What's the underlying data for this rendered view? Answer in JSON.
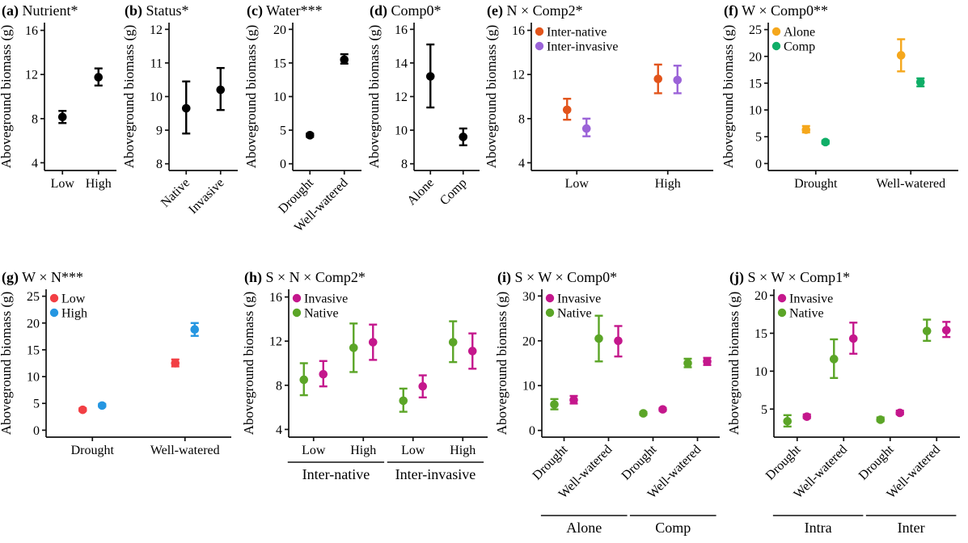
{
  "figure": {
    "background": "#ffffff",
    "shared_ylabel": "Aboveground biomass (g)"
  },
  "chart_data": [
    {
      "id": "a",
      "panel_label": "(a)",
      "title": "Nutrient*",
      "type": "pointrange",
      "ylabel": "Aboveground biomass (g)",
      "ylim": [
        3.3,
        16.7
      ],
      "yticks": [
        4,
        8,
        12,
        16
      ],
      "categories": [
        "Low",
        "High"
      ],
      "xtick_rotate": 0,
      "groups": [],
      "legend": false,
      "series": [
        {
          "name": "",
          "color": "#000000",
          "dodge": 0,
          "points": [
            {
              "y": 8.15,
              "lo": 7.6,
              "hi": 8.7
            },
            {
              "y": 11.75,
              "lo": 11.0,
              "hi": 12.55
            }
          ]
        }
      ]
    },
    {
      "id": "b",
      "panel_label": "(b)",
      "title": "Status*",
      "type": "pointrange",
      "ylabel": "Aboveground biomass (g)",
      "ylim": [
        7.8,
        12.2
      ],
      "yticks": [
        8,
        9,
        10,
        11,
        12
      ],
      "categories": [
        "Native",
        "Invasive"
      ],
      "xtick_rotate": 45,
      "groups": [],
      "legend": false,
      "series": [
        {
          "name": "",
          "color": "#000000",
          "dodge": 0,
          "points": [
            {
              "y": 9.65,
              "lo": 8.9,
              "hi": 10.45
            },
            {
              "y": 10.2,
              "lo": 9.6,
              "hi": 10.85
            }
          ]
        }
      ]
    },
    {
      "id": "c",
      "panel_label": "(c)",
      "title": "Water***",
      "type": "pointrange",
      "ylabel": "Aboveground biomass (g)",
      "ylim": [
        -1,
        21
      ],
      "yticks": [
        0,
        5,
        10,
        15,
        20
      ],
      "categories": [
        "Drought",
        "Well-watered"
      ],
      "xtick_rotate": 45,
      "groups": [],
      "legend": false,
      "series": [
        {
          "name": "",
          "color": "#000000",
          "dodge": 0,
          "points": [
            {
              "y": 4.25,
              "lo": 4.0,
              "hi": 4.5
            },
            {
              "y": 15.5,
              "lo": 14.9,
              "hi": 16.3
            }
          ]
        }
      ]
    },
    {
      "id": "d",
      "panel_label": "(d)",
      "title": "Comp0*",
      "type": "pointrange",
      "ylabel": "Aboveground biomass (g)",
      "ylim": [
        7.6,
        16.4
      ],
      "yticks": [
        8,
        10,
        12,
        14,
        16
      ],
      "categories": [
        "Alone",
        "Comp"
      ],
      "xtick_rotate": 45,
      "groups": [],
      "legend": false,
      "series": [
        {
          "name": "",
          "color": "#000000",
          "dodge": 0,
          "points": [
            {
              "y": 13.2,
              "lo": 11.35,
              "hi": 15.1
            },
            {
              "y": 9.6,
              "lo": 9.1,
              "hi": 10.1
            }
          ]
        }
      ]
    },
    {
      "id": "e",
      "panel_label": "(e)",
      "title": "N × Comp2*",
      "type": "pointrange",
      "ylabel": "Aboveground biomass (g)",
      "ylim": [
        3.3,
        16.7
      ],
      "yticks": [
        4,
        8,
        12,
        16
      ],
      "categories": [
        "Low",
        "High"
      ],
      "xtick_rotate": 0,
      "groups": [],
      "legend": true,
      "series": [
        {
          "name": "Inter-native",
          "color": "#E2541B",
          "dodge": -1,
          "points": [
            {
              "y": 8.8,
              "lo": 7.9,
              "hi": 9.8
            },
            {
              "y": 11.6,
              "lo": 10.3,
              "hi": 12.9
            }
          ]
        },
        {
          "name": "Inter-invasive",
          "color": "#9B63D8",
          "dodge": 1,
          "points": [
            {
              "y": 7.1,
              "lo": 6.4,
              "hi": 8.0
            },
            {
              "y": 11.5,
              "lo": 10.3,
              "hi": 12.8
            }
          ]
        }
      ]
    },
    {
      "id": "f",
      "panel_label": "(f)",
      "title": "W × Comp0**",
      "type": "pointrange",
      "ylabel": "Aboveground biomass (g)",
      "ylim": [
        -1.3,
        26.3
      ],
      "yticks": [
        0,
        5,
        10,
        15,
        20,
        25
      ],
      "categories": [
        "Drought",
        "Well-watered"
      ],
      "xtick_rotate": 0,
      "groups": [],
      "legend": true,
      "series": [
        {
          "name": "Alone",
          "color": "#F5A71C",
          "dodge": -1,
          "points": [
            {
              "y": 6.3,
              "lo": 5.8,
              "hi": 7.0
            },
            {
              "y": 20.2,
              "lo": 17.2,
              "hi": 23.2
            }
          ]
        },
        {
          "name": "Comp",
          "color": "#0FAE67",
          "dodge": 1,
          "points": [
            {
              "y": 4.0,
              "lo": 3.7,
              "hi": 4.3
            },
            {
              "y": 15.2,
              "lo": 14.4,
              "hi": 15.9
            }
          ]
        }
      ]
    },
    {
      "id": "g",
      "panel_label": "(g)",
      "title": "W × N***",
      "type": "pointrange",
      "ylabel": "Aboveground biomass (g)",
      "ylim": [
        -1.3,
        26.3
      ],
      "yticks": [
        0,
        5,
        10,
        15,
        20,
        25
      ],
      "categories": [
        "Drought",
        "Well-watered"
      ],
      "xtick_rotate": 0,
      "groups": [],
      "legend": true,
      "series": [
        {
          "name": "Low",
          "color": "#F23F44",
          "dodge": -1,
          "points": [
            {
              "y": 3.8,
              "lo": 3.6,
              "hi": 4.1
            },
            {
              "y": 12.5,
              "lo": 11.9,
              "hi": 13.2
            }
          ]
        },
        {
          "name": "High",
          "color": "#2596E1",
          "dodge": 1,
          "points": [
            {
              "y": 4.6,
              "lo": 4.4,
              "hi": 4.9
            },
            {
              "y": 18.8,
              "lo": 17.6,
              "hi": 20.0
            }
          ]
        }
      ]
    },
    {
      "id": "h",
      "panel_label": "(h)",
      "title": "S × N × Comp2*",
      "type": "pointrange",
      "ylabel": "Aboveground biomass (g)",
      "ylim": [
        3.3,
        16.7
      ],
      "yticks": [
        4,
        8,
        12,
        16
      ],
      "categories": [
        "Low",
        "High",
        "Low",
        "High"
      ],
      "xtick_rotate": 0,
      "groups": [
        {
          "label": "Inter-native",
          "from": 0,
          "to": 1
        },
        {
          "label": "Inter-invasive",
          "from": 2,
          "to": 3
        }
      ],
      "legend": true,
      "series": [
        {
          "name": "Invasive",
          "color": "#C4178C",
          "dodge": 1,
          "points": [
            {
              "y": 9.0,
              "lo": 7.9,
              "hi": 10.2
            },
            {
              "y": 11.9,
              "lo": 10.3,
              "hi": 13.5
            },
            {
              "y": 7.9,
              "lo": 6.9,
              "hi": 8.9
            },
            {
              "y": 11.1,
              "lo": 9.5,
              "hi": 12.7
            }
          ]
        },
        {
          "name": "Native",
          "color": "#5BA527",
          "dodge": -1,
          "points": [
            {
              "y": 8.5,
              "lo": 7.1,
              "hi": 10.0
            },
            {
              "y": 11.4,
              "lo": 9.2,
              "hi": 13.6
            },
            {
              "y": 6.6,
              "lo": 5.6,
              "hi": 7.7
            },
            {
              "y": 11.9,
              "lo": 10.1,
              "hi": 13.8
            }
          ]
        }
      ]
    },
    {
      "id": "i",
      "panel_label": "(i)",
      "title": "S × W × Comp0*",
      "type": "pointrange",
      "ylabel": "Aboveground biomass (g)",
      "ylim": [
        -1.5,
        31.5
      ],
      "yticks": [
        0,
        10,
        20,
        30
      ],
      "categories": [
        "Drought",
        "Well-watered",
        "Drought",
        "Well-watered"
      ],
      "xtick_rotate": 45,
      "groups": [
        {
          "label": "Alone",
          "from": 0,
          "to": 1
        },
        {
          "label": "Comp",
          "from": 2,
          "to": 3
        }
      ],
      "legend": true,
      "series": [
        {
          "name": "Invasive",
          "color": "#C4178C",
          "dodge": 1,
          "points": [
            {
              "y": 6.8,
              "lo": 6.0,
              "hi": 7.7
            },
            {
              "y": 20.0,
              "lo": 16.5,
              "hi": 23.3
            },
            {
              "y": 4.7,
              "lo": 4.4,
              "hi": 5.0
            },
            {
              "y": 15.4,
              "lo": 14.6,
              "hi": 16.2
            }
          ]
        },
        {
          "name": "Native",
          "color": "#5BA527",
          "dodge": -1,
          "points": [
            {
              "y": 5.8,
              "lo": 4.7,
              "hi": 7.0
            },
            {
              "y": 20.5,
              "lo": 15.4,
              "hi": 25.6
            },
            {
              "y": 3.8,
              "lo": 3.5,
              "hi": 4.1
            },
            {
              "y": 15.0,
              "lo": 14.1,
              "hi": 16.0
            }
          ]
        }
      ]
    },
    {
      "id": "j",
      "panel_label": "(j)",
      "title": "S × W × Comp1*",
      "type": "pointrange",
      "ylabel": "Aboveground biomass (g)",
      "ylim": [
        1.3,
        20.8
      ],
      "yticks": [
        5,
        10,
        15,
        20
      ],
      "categories": [
        "Drought",
        "Well-watered",
        "Drought",
        "Well-watered"
      ],
      "xtick_rotate": 45,
      "groups": [
        {
          "label": "Intra",
          "from": 0,
          "to": 1
        },
        {
          "label": "Inter",
          "from": 2,
          "to": 3
        }
      ],
      "legend": true,
      "series": [
        {
          "name": "Invasive",
          "color": "#C4178C",
          "dodge": 1,
          "points": [
            {
              "y": 4.0,
              "lo": 3.8,
              "hi": 4.3
            },
            {
              "y": 14.3,
              "lo": 12.3,
              "hi": 16.4
            },
            {
              "y": 4.5,
              "lo": 4.3,
              "hi": 4.8
            },
            {
              "y": 15.4,
              "lo": 14.5,
              "hi": 16.5
            }
          ]
        },
        {
          "name": "Native",
          "color": "#5BA527",
          "dodge": -1,
          "points": [
            {
              "y": 3.4,
              "lo": 2.7,
              "hi": 4.2
            },
            {
              "y": 11.6,
              "lo": 9.1,
              "hi": 14.2
            },
            {
              "y": 3.6,
              "lo": 3.4,
              "hi": 3.9
            },
            {
              "y": 15.3,
              "lo": 14.0,
              "hi": 16.8
            }
          ]
        }
      ]
    }
  ]
}
